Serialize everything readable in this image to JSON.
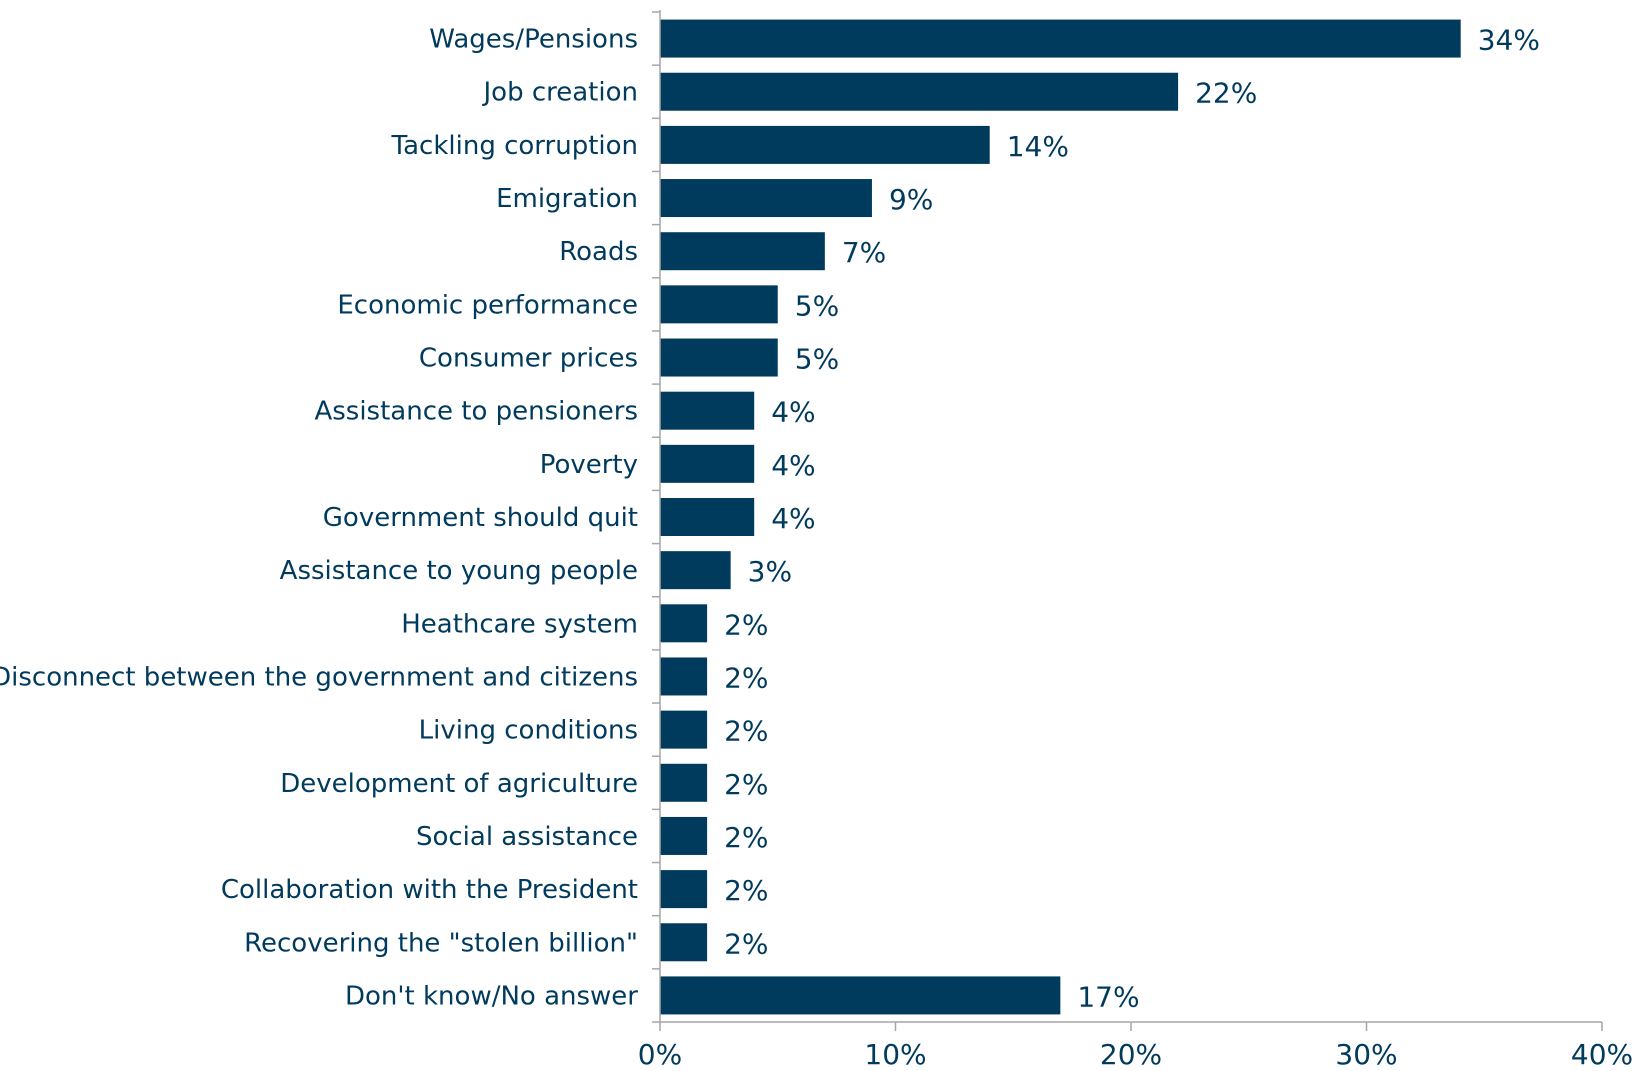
{
  "chart_data": {
    "type": "bar",
    "orientation": "horizontal",
    "categories": [
      "Wages/Pensions",
      "Job creation",
      "Tackling corruption",
      "Emigration",
      "Roads",
      "Economic performance",
      "Consumer prices",
      "Assistance to pensioners",
      "Poverty",
      "Government should quit",
      "Assistance to young people",
      "Heathcare system",
      "Disconnect between the government and citizens",
      "Living conditions",
      "Development of agriculture",
      "Social assistance",
      "Collaboration with the President",
      "Recovering the \"stolen billion\"",
      "Don't know/No answer"
    ],
    "values": [
      34,
      22,
      14,
      9,
      7,
      5,
      5,
      4,
      4,
      4,
      3,
      2,
      2,
      2,
      2,
      2,
      2,
      2,
      17
    ],
    "data_labels": [
      "34%",
      "22%",
      "14%",
      "9%",
      "7%",
      "5%",
      "5%",
      "4%",
      "4%",
      "4%",
      "3%",
      "2%",
      "2%",
      "2%",
      "2%",
      "2%",
      "2%",
      "2%",
      "17%"
    ],
    "xlim": [
      0,
      40
    ],
    "xticks": [
      0,
      10,
      20,
      30,
      40
    ],
    "xtick_labels": [
      "0%",
      "10%",
      "20%",
      "30%",
      "40%"
    ],
    "title": "",
    "xlabel": "",
    "ylabel": "",
    "grid": false,
    "legend": "none",
    "colors": {
      "bar": "#003a5c",
      "text": "#003a5c",
      "axis": "#a6a6a6"
    }
  }
}
